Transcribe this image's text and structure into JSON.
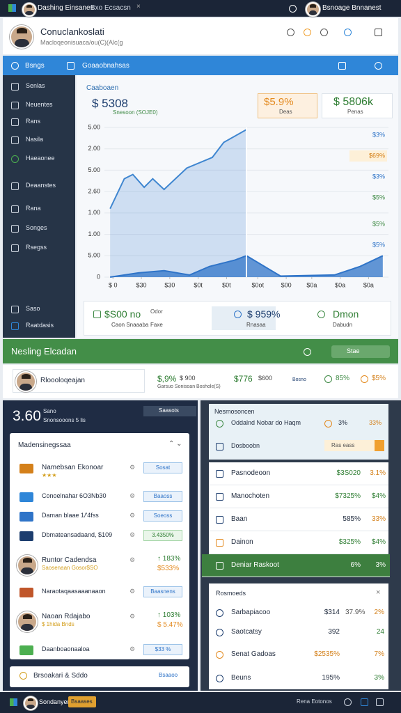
{
  "topbar": {
    "title": "Dashing Einsanes",
    "tab": "Bxo Ecsacsn",
    "user": "Bsnoage Bnnanest"
  },
  "header": {
    "title": "Conuclankoslati",
    "subtitle": "Macloqeonisuaca/ou(C)(Alc(g"
  },
  "nav": {
    "items": [
      "Bsngs",
      "Goaaobnahsas"
    ]
  },
  "sidebar": {
    "items": [
      "Senlas",
      "Neuentes",
      "Rans",
      "Nasila",
      "Haeaonee",
      "Deaanstes",
      "Rana",
      "Songes",
      "Rsegss"
    ],
    "footer": [
      "Saso",
      "Raatdasis"
    ]
  },
  "overview": {
    "label": "Caaboaen",
    "total": "$ 5308",
    "total_note": "Snesoon (SOJE0)",
    "kpis": [
      {
        "value": "$5.9%",
        "label": "Deas"
      },
      {
        "value": "$ 5806k",
        "label": "Penas"
      }
    ]
  },
  "chart": {
    "xlim": [
      0,
      100
    ],
    "ylim": [
      0,
      7
    ],
    "yticks": [
      {
        "value": 0,
        "label": "0"
      },
      {
        "value": 1,
        "label": "5.00"
      },
      {
        "value": 2,
        "label": "1.00"
      },
      {
        "value": 3,
        "label": "1.00"
      },
      {
        "value": 4,
        "label": "2.60"
      },
      {
        "value": 5,
        "label": "5.00"
      },
      {
        "value": 6,
        "label": "2.00"
      },
      {
        "value": 7,
        "label": "5.00"
      }
    ],
    "xticks": [
      {
        "value": 3,
        "label": "$ 0"
      },
      {
        "value": 13,
        "label": "$30"
      },
      {
        "value": 23,
        "label": "$30"
      },
      {
        "value": 33,
        "label": "$0t"
      },
      {
        "value": 43,
        "label": "$0t"
      },
      {
        "value": 54,
        "label": "$0ot"
      },
      {
        "value": 64,
        "label": "$00"
      },
      {
        "value": 73,
        "label": "$0a"
      },
      {
        "value": 83,
        "label": "$0a"
      },
      {
        "value": 93,
        "label": "$0a"
      }
    ],
    "series": [
      {
        "color": "#3f86d0",
        "x": [
          2,
          7,
          10,
          14,
          17,
          21,
          29,
          38,
          42,
          50
        ],
        "values": [
          3.2,
          4.6,
          4.8,
          4.2,
          4.6,
          4.1,
          5.1,
          5.6,
          6.3,
          6.9
        ]
      },
      {
        "color": "#2f74c8",
        "x": [
          2,
          12,
          21,
          30,
          37,
          46,
          50,
          62,
          81,
          90,
          98
        ],
        "values": [
          0,
          0.2,
          0.3,
          0.1,
          0.5,
          0.8,
          1,
          0.05,
          0.1,
          0.5,
          1
        ]
      }
    ],
    "annotations": [
      "$3%",
      "$69%",
      "$3%",
      "$5%",
      "$5%",
      "$5%"
    ]
  },
  "summary": [
    {
      "value": "$S00 no",
      "note": "Odor",
      "label": "Caon Snaaaba",
      "label2": "Faxe"
    },
    {
      "value": "$ 959%",
      "label": "Rnasaa"
    },
    {
      "value": "Dmon",
      "label": "Dabudn"
    }
  ],
  "banner": {
    "title": "Nesling Elcadan",
    "button": "Stae"
  },
  "profile": {
    "name": "Rloooloqeajan",
    "stats": [
      {
        "value": "$,9%",
        "note": "$ 900",
        "label": "Garsuo Sonisoan Boshole(S)"
      },
      {
        "value": "$776",
        "note": "$600",
        "label": "Bosno"
      },
      {
        "value": "85%"
      },
      {
        "value": "$5%"
      }
    ]
  },
  "left_panel": {
    "value": "3.60",
    "label": "Sano",
    "sub": "Snonsooons 5 lis",
    "button": "Saasots",
    "list_title": "Madensinegssaa",
    "items": [
      {
        "name": "Namebsan Ekonoar",
        "sub": "★★★",
        "badge": "Sosat"
      },
      {
        "name": "Conoelnahar 6O3Nb30",
        "badge": "Baaoss"
      },
      {
        "name": "Daman blaae 1/'4fss",
        "badge": "Soeoss"
      },
      {
        "name": "Dbmateansadaand, $109",
        "badge": "3.4350%"
      },
      {
        "name": "Runtor Cadendsa",
        "sub": "Saosenaan Gosor$SO",
        "value": "↑ 183%",
        "value2": "$533%"
      },
      {
        "name": "Naraotaqaasaaanaaon",
        "badge": "Baasnens"
      },
      {
        "name": "Naoan Rdajabo",
        "sub": "$ 1hida Bnds",
        "value": "↑ 103%",
        "value2": "$ 5.47%"
      },
      {
        "name": "Daanboaonaaloa",
        "badge": "$33 %"
      }
    ],
    "footer": {
      "name": "Brsoakari & Sddo",
      "badge": "Bsaaoo"
    }
  },
  "right_panel": {
    "title": "Nesmosoncen",
    "top_row": {
      "name": "Oddalnd Nobar do Haqm",
      "value": "3%",
      "pct": "33%"
    },
    "second_row": {
      "name": "Dosboobn",
      "badge": "Ras eass"
    },
    "rows": [
      {
        "name": "Pasnodeoon",
        "value": "$3S020",
        "pct": "3.1%"
      },
      {
        "name": "Manochoten",
        "value": "$7325%",
        "pct": "$4%"
      },
      {
        "name": "Baan",
        "value": "585%",
        "pct": "33%"
      },
      {
        "name": "Dainon",
        "value": "$325%",
        "pct": "$4%"
      },
      {
        "name": "Deniar Raskoot",
        "value": "6%",
        "pct": "3%"
      }
    ],
    "recent_title": "Rosmoeds",
    "recent": [
      {
        "name": "Sarbapiacoo",
        "value": "$314",
        "pct": "37.9%",
        "change": "2%"
      },
      {
        "name": "Saotcatsy",
        "value": "392",
        "change": "24"
      },
      {
        "name": "Senat Gadoas",
        "value": "$2535%",
        "change": "7%"
      },
      {
        "name": "Beuns",
        "value": "195%",
        "change": "3%"
      }
    ]
  },
  "bottombar": {
    "user": "Sondanyen",
    "button": "Bsaases",
    "right": "Rena Eotonos"
  }
}
